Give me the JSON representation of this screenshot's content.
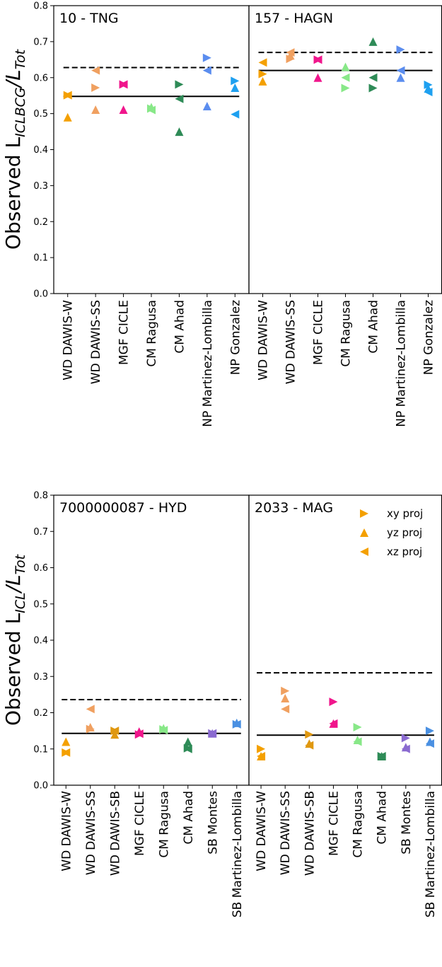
{
  "chart_data": [
    {
      "type": "scatter",
      "ylabel": "Observed L_ICLBCG/L_Tot",
      "ylim": [
        0,
        0.8
      ],
      "yticks": [
        "0.0",
        "0.1",
        "0.2",
        "0.3",
        "0.4",
        "0.5",
        "0.6",
        "0.7",
        "0.8"
      ],
      "panels": [
        {
          "title": "10 - TNG",
          "categories": [
            "WD DAWIS-W",
            "WD DAWIS-SS",
            "MGF CICLE",
            "CM Ragusa",
            "CM Ahad",
            "NP Martinez-Lombilla",
            "NP Gonzalez"
          ],
          "reference_solid": 0.548,
          "reference_dashed": 0.628,
          "points": [
            {
              "method": "WD DAWIS-W",
              "color": "#f4a000",
              "xy": 0.551,
              "yz": 0.49,
              "xz": 0.551
            },
            {
              "method": "WD DAWIS-SS",
              "color": "#f0a060",
              "xy": 0.572,
              "yz": 0.511,
              "xz": 0.62
            },
            {
              "method": "MGF CICLE",
              "color": "#f0168c",
              "xy": 0.581,
              "yz": 0.511,
              "xz": 0.581
            },
            {
              "method": "CM Ragusa",
              "color": "#88e888",
              "xy": 0.514,
              "yz": 0.518,
              "xz": 0.51
            },
            {
              "method": "CM Ahad",
              "color": "#2e8b57",
              "xy": 0.581,
              "yz": 0.45,
              "xz": 0.541
            },
            {
              "method": "NP Martinez-Lombilla",
              "color": "#5b8def",
              "xy": 0.655,
              "yz": 0.521,
              "xz": 0.62
            },
            {
              "method": "NP Gonzalez",
              "color": "#1ea0f0",
              "xy": 0.591,
              "yz": 0.572,
              "xz": 0.498
            }
          ]
        },
        {
          "title": "157 - HAGN",
          "categories": [
            "WD DAWIS-W",
            "WD DAWIS-SS",
            "MGF CICLE",
            "CM Ragusa",
            "CM Ahad",
            "NP Martinez-Lombilla",
            "NP Gonzalez"
          ],
          "reference_solid": 0.62,
          "reference_dashed": 0.67,
          "points": [
            {
              "method": "WD DAWIS-W",
              "color": "#f4a000",
              "xy": 0.61,
              "yz": 0.59,
              "xz": 0.642
            },
            {
              "method": "WD DAWIS-SS",
              "color": "#f0a060",
              "xy": 0.652,
              "yz": 0.662,
              "xz": 0.67
            },
            {
              "method": "MGF CICLE",
              "color": "#f0168c",
              "xy": 0.65,
              "yz": 0.6,
              "xz": 0.65
            },
            {
              "method": "CM Ragusa",
              "color": "#88e888",
              "xy": 0.571,
              "yz": 0.63,
              "xz": 0.6
            },
            {
              "method": "CM Ahad",
              "color": "#2e8b57",
              "xy": 0.571,
              "yz": 0.7,
              "xz": 0.6
            },
            {
              "method": "NP Martinez-Lombilla",
              "color": "#5b8def",
              "xy": 0.678,
              "yz": 0.6,
              "xz": 0.62
            },
            {
              "method": "NP Gonzalez",
              "color": "#1ea0f0",
              "xy": 0.58,
              "yz": 0.57,
              "xz": 0.56
            }
          ]
        }
      ]
    },
    {
      "type": "scatter",
      "ylabel": "Observed L_ICL/L_Tot",
      "ylim": [
        0,
        0.8
      ],
      "yticks": [
        "0.0",
        "0.1",
        "0.2",
        "0.3",
        "0.4",
        "0.5",
        "0.6",
        "0.7",
        "0.8"
      ],
      "legend": {
        "placement": "top-right",
        "entries": [
          "xy proj",
          "yz proj",
          "xz proj"
        ]
      },
      "panels": [
        {
          "title": "7000000087 - HYD",
          "categories": [
            "WD DAWIS-W",
            "WD DAWIS-SS",
            "WD DAWIS-SB",
            "MGF CICLE",
            "CM Ragusa",
            "CM Ahad",
            "SB Montes",
            "SB Martinez-Lombilla"
          ],
          "reference_solid": 0.143,
          "reference_dashed": 0.236,
          "points": [
            {
              "method": "WD DAWIS-W",
              "color": "#f4a000",
              "xy": 0.09,
              "yz": 0.12,
              "xz": 0.09
            },
            {
              "method": "WD DAWIS-SS",
              "color": "#f0a060",
              "xy": 0.155,
              "yz": 0.16,
              "xz": 0.21
            },
            {
              "method": "WD DAWIS-SB",
              "color": "#e09810",
              "xy": 0.15,
              "yz": 0.14,
              "xz": 0.15
            },
            {
              "method": "MGF CICLE",
              "color": "#f0168c",
              "xy": 0.14,
              "yz": 0.148,
              "xz": 0.142
            },
            {
              "method": "CM Ragusa",
              "color": "#88e888",
              "xy": 0.154,
              "yz": 0.157,
              "xz": 0.152
            },
            {
              "method": "CM Ahad",
              "color": "#2e8b57",
              "xy": 0.102,
              "yz": 0.12,
              "xz": 0.1
            },
            {
              "method": "SB Montes",
              "color": "#8a6ad0",
              "xy": 0.143,
              "yz": 0.143,
              "xz": 0.143
            },
            {
              "method": "SB Martinez-Lombilla",
              "color": "#4a90e2",
              "xy": 0.168,
              "yz": 0.172,
              "xz": 0.168
            }
          ]
        },
        {
          "title": "2033 - MAG",
          "categories": [
            "WD DAWIS-W",
            "WD DAWIS-SS",
            "WD DAWIS-SB",
            "MGF CICLE",
            "CM Ragusa",
            "CM Ahad",
            "SB Montes",
            "SB Martinez-Lombilla"
          ],
          "reference_solid": 0.138,
          "reference_dashed": 0.31,
          "points": [
            {
              "method": "WD DAWIS-W",
              "color": "#f4a000",
              "xy": 0.1,
              "yz": 0.08,
              "xz": 0.08
            },
            {
              "method": "WD DAWIS-SS",
              "color": "#f0a060",
              "xy": 0.26,
              "yz": 0.24,
              "xz": 0.21
            },
            {
              "method": "WD DAWIS-SB",
              "color": "#e09810",
              "xy": 0.14,
              "yz": 0.115,
              "xz": 0.11
            },
            {
              "method": "MGF CICLE",
              "color": "#f0168c",
              "xy": 0.23,
              "yz": 0.17,
              "xz": 0.17
            },
            {
              "method": "CM Ragusa",
              "color": "#88e888",
              "xy": 0.16,
              "yz": 0.125,
              "xz": 0.12
            },
            {
              "method": "CM Ahad",
              "color": "#2e8b57",
              "xy": 0.08,
              "yz": 0.08,
              "xz": 0.08
            },
            {
              "method": "SB Montes",
              "color": "#8a6ad0",
              "xy": 0.13,
              "yz": 0.105,
              "xz": 0.1
            },
            {
              "method": "SB Martinez-Lombilla",
              "color": "#4a90e2",
              "xy": 0.15,
              "yz": 0.12,
              "xz": 0.115
            }
          ]
        }
      ]
    }
  ]
}
